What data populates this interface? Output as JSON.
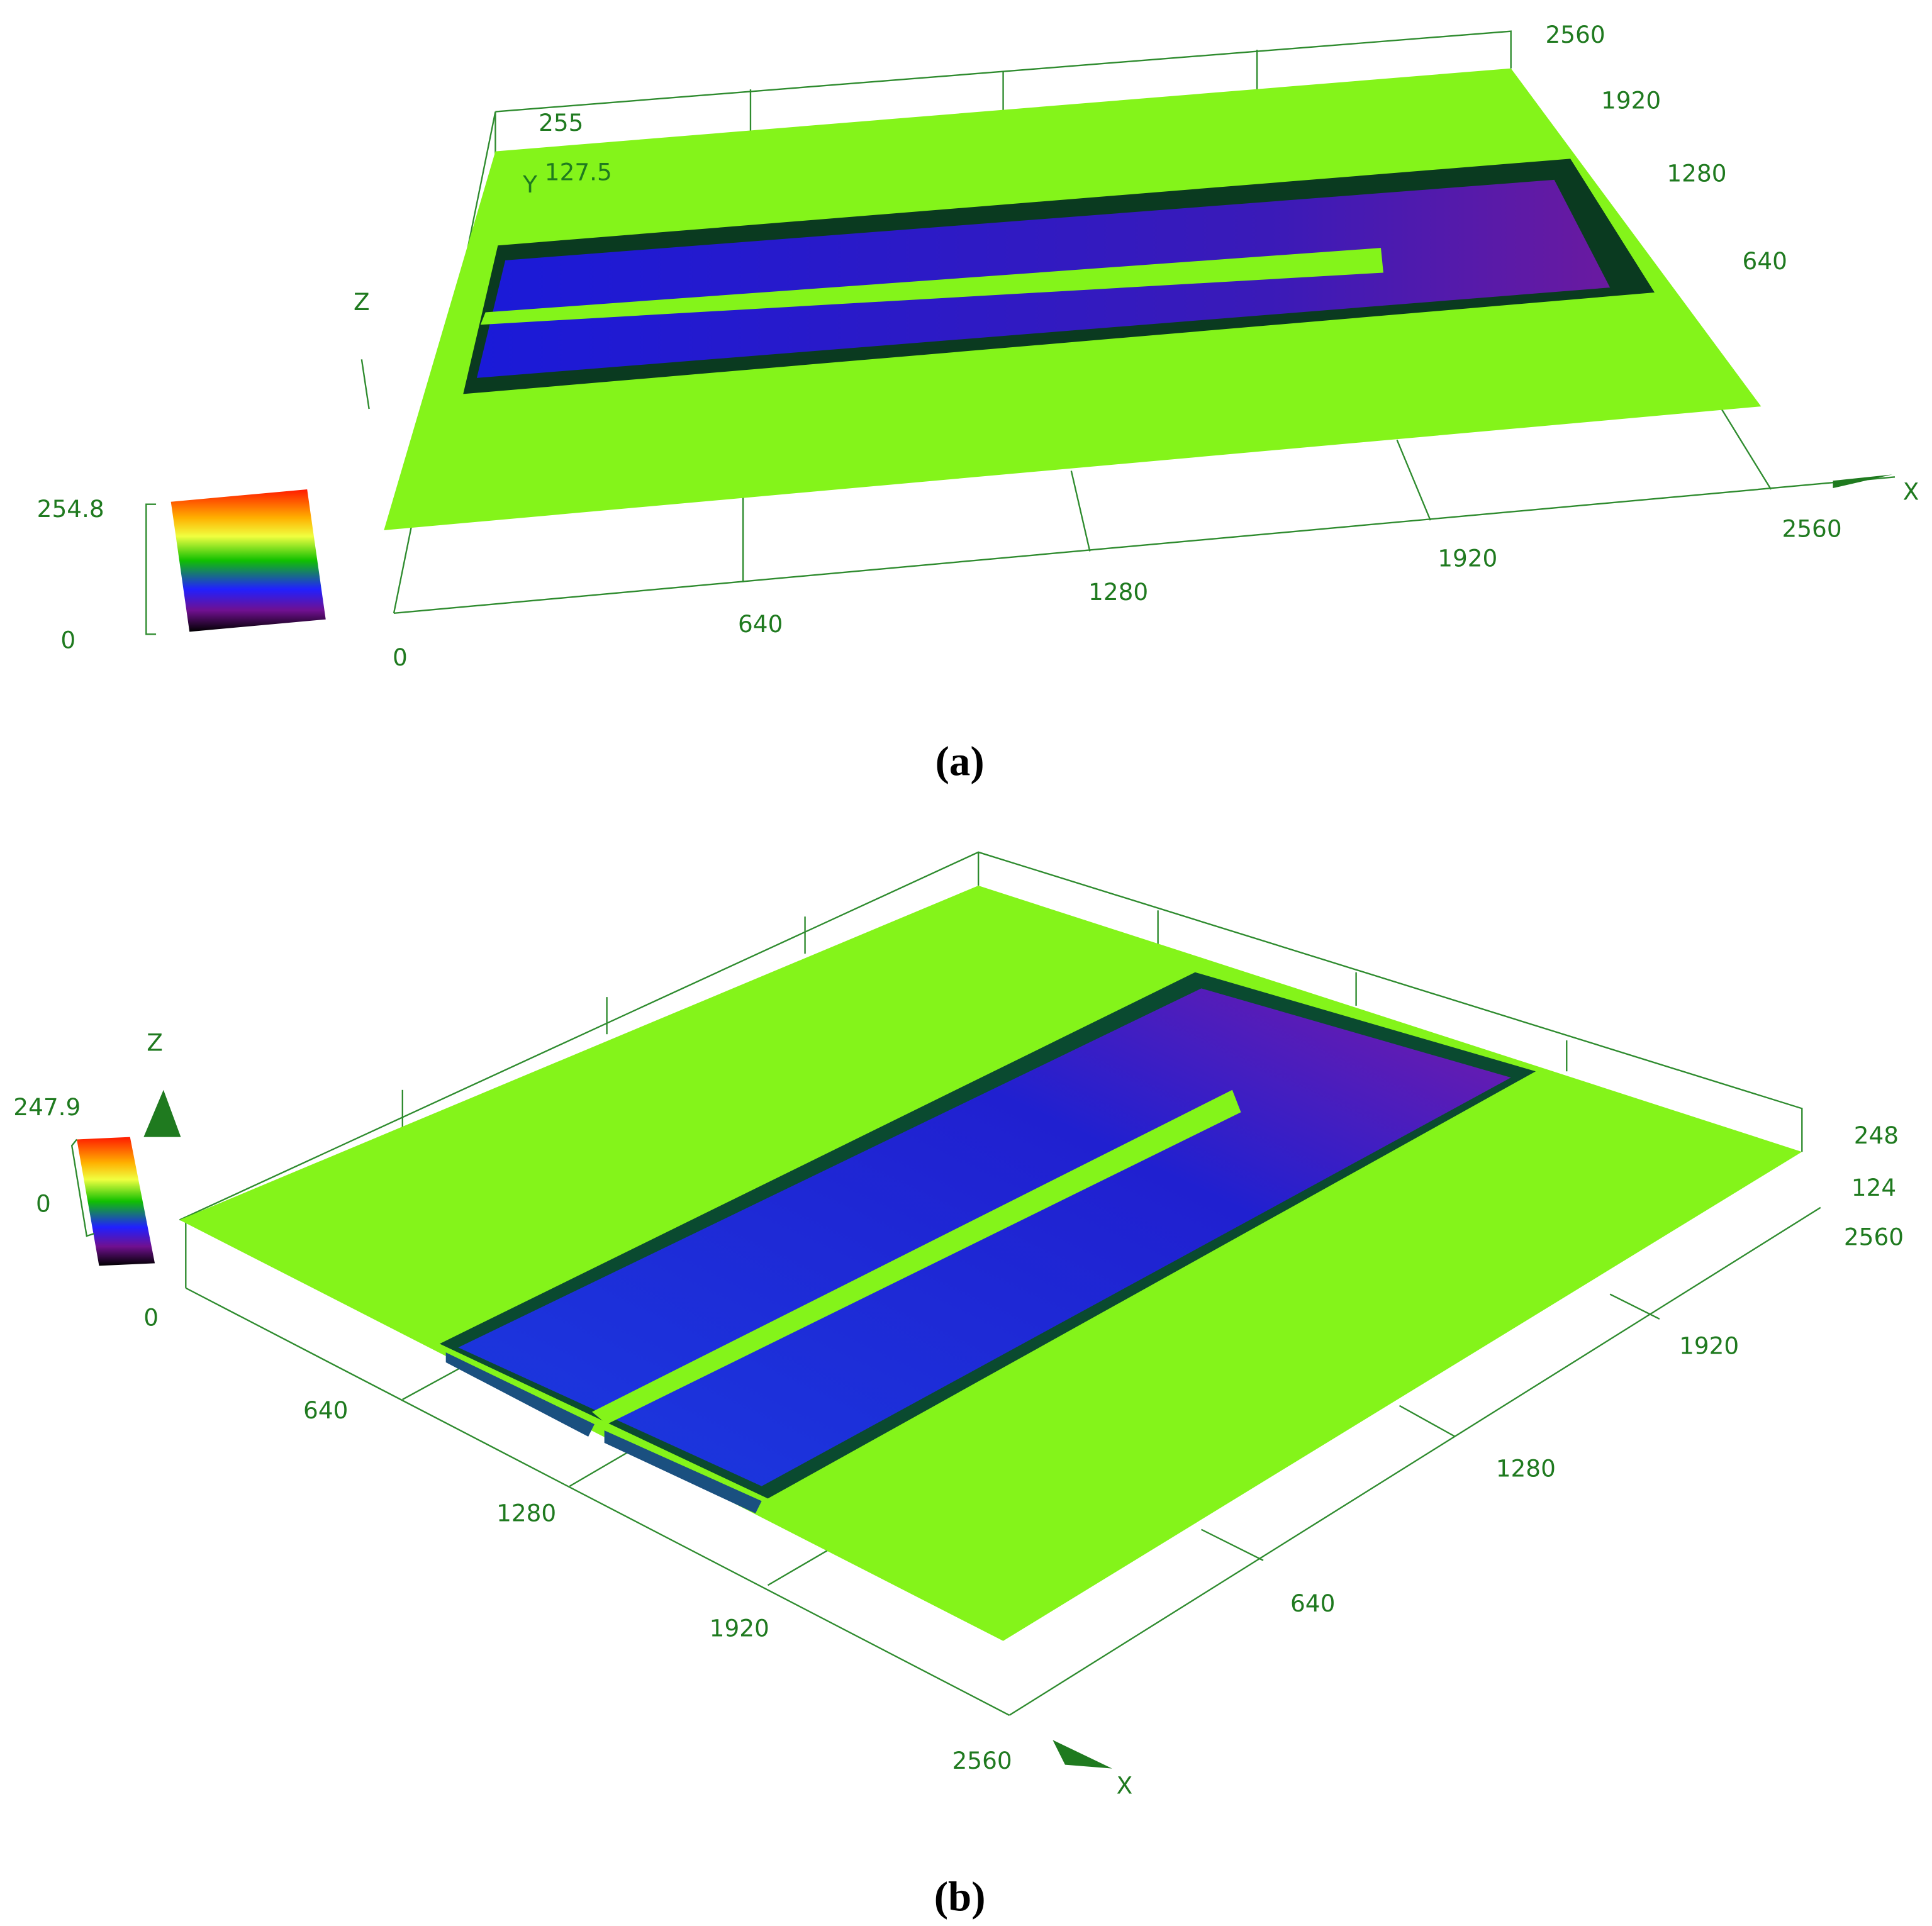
{
  "panels": [
    {
      "caption": "(a)",
      "colorbar": {
        "max": 254.8,
        "min": 0
      },
      "axis_names": {
        "x": "X",
        "y": "Y",
        "z": "Z"
      },
      "z_ticks": [
        255,
        127.5
      ],
      "x_ticks": [
        0,
        640,
        1280,
        1920,
        2560
      ],
      "y_ticks": [
        640,
        1280,
        1920,
        2560
      ]
    },
    {
      "caption": "(b)",
      "colorbar": {
        "max": 247.9,
        "min": 0
      },
      "axis_names": {
        "x": "X",
        "z": "Z"
      },
      "z_ticks": [
        248,
        124
      ],
      "x_ticks": [
        0,
        640,
        1280,
        1920,
        2560
      ],
      "y_ticks": [
        2560,
        1920,
        1280,
        640
      ]
    }
  ]
}
